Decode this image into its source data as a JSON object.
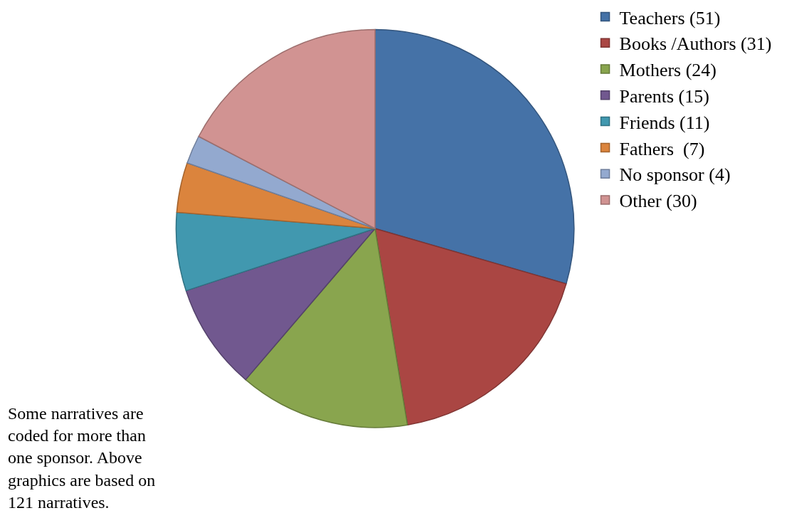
{
  "chart_data": {
    "type": "pie",
    "categories": [
      "Teachers (51)",
      "Books /Authors (31)",
      "Mothers (24)",
      "Parents (15)",
      "Friends (11)",
      "Fathers  (7)",
      "No sponsor (4)",
      "Other (30)"
    ],
    "values": [
      51,
      31,
      24,
      15,
      11,
      7,
      4,
      30
    ],
    "colors": [
      "#4572a7",
      "#aa4643",
      "#89a54e",
      "#71588f",
      "#4198af",
      "#db843d",
      "#93a9cf",
      "#d19392"
    ],
    "legend": "right",
    "annotations": [
      "Some narratives are coded for more than one sponsor. Above graphics are based on 121 narratives."
    ]
  }
}
